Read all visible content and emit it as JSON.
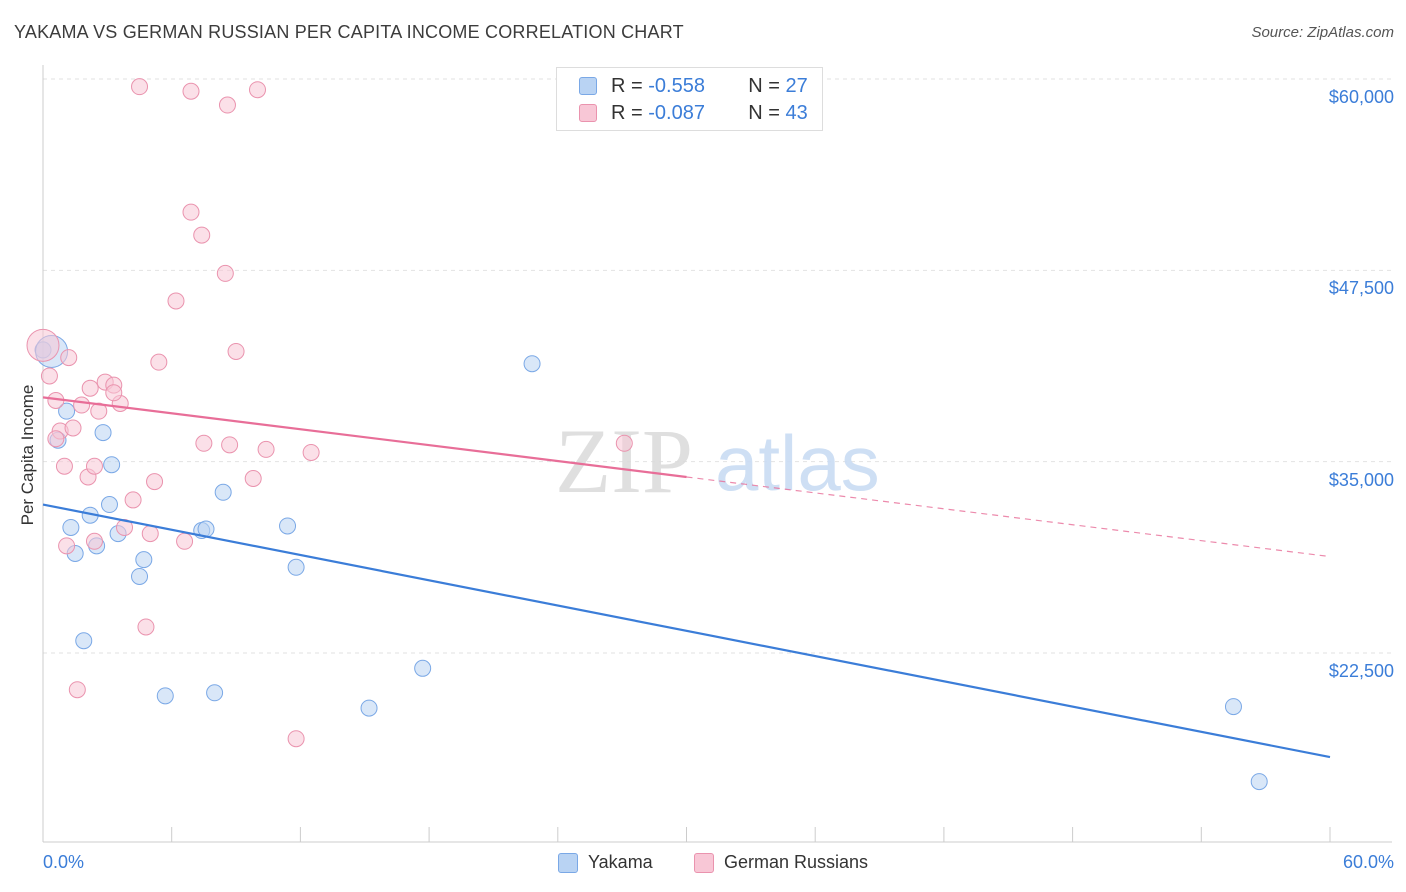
{
  "title": "YAKAMA VS GERMAN RUSSIAN PER CAPITA INCOME CORRELATION CHART",
  "source": "Source: ZipAtlas.com",
  "watermark": {
    "zip": "ZIP",
    "atlas": "atlas"
  },
  "stats": {
    "r_label": "R =",
    "n_label": "N =",
    "rows": [
      {
        "series": "Yakama",
        "r": "-0.558",
        "n": "27",
        "color": "#3b7dd8"
      },
      {
        "series": "German Russians",
        "r": "-0.087",
        "n": "43",
        "color": "#e86e98"
      }
    ]
  },
  "legend": [
    "Yakama",
    "German Russians"
  ],
  "chart_data": {
    "type": "scatter",
    "title": "YAKAMA VS GERMAN RUSSIAN PER CAPITA INCOME CORRELATION CHART",
    "xlabel": "",
    "ylabel": "Per Capita Income",
    "xlim": [
      0,
      60
    ],
    "ylim": [
      12000,
      62000
    ],
    "x_tick_labels": [
      "0.0%",
      "60.0%"
    ],
    "y_ticks": [
      22500,
      35000,
      47500,
      60000
    ],
    "y_tick_labels": [
      "$22,500",
      "$35,000",
      "$47,500",
      "$60,000"
    ],
    "series": [
      {
        "name": "Yakama",
        "color": "#3b7dd8",
        "points": [
          [
            0.0,
            42300
          ],
          [
            1.1,
            38300
          ],
          [
            0.7,
            36400
          ],
          [
            2.8,
            36900
          ],
          [
            3.2,
            34800
          ],
          [
            3.1,
            32200
          ],
          [
            2.2,
            31500
          ],
          [
            1.3,
            30700
          ],
          [
            3.5,
            30300
          ],
          [
            8.4,
            33000
          ],
          [
            7.4,
            30500
          ],
          [
            7.6,
            30600
          ],
          [
            11.4,
            30800
          ],
          [
            2.5,
            29500
          ],
          [
            1.5,
            29000
          ],
          [
            4.7,
            28600
          ],
          [
            11.8,
            28100
          ],
          [
            4.5,
            27500
          ],
          [
            1.9,
            23300
          ],
          [
            5.7,
            19700
          ],
          [
            8.0,
            19900
          ],
          [
            15.2,
            18900
          ],
          [
            17.7,
            21500
          ],
          [
            22.8,
            41400
          ],
          [
            55.5,
            19000
          ],
          [
            56.7,
            14100
          ],
          [
            0.4,
            42200
          ]
        ],
        "trend": {
          "x": [
            0,
            60
          ],
          "y": [
            32200,
            15700
          ],
          "dashed_from": null
        }
      },
      {
        "name": "German Russians",
        "color": "#e86e98",
        "points": [
          [
            0.0,
            42600
          ],
          [
            0.3,
            40600
          ],
          [
            1.2,
            41800
          ],
          [
            2.2,
            39800
          ],
          [
            2.9,
            40200
          ],
          [
            3.3,
            40000
          ],
          [
            0.6,
            39000
          ],
          [
            1.8,
            38700
          ],
          [
            2.6,
            38300
          ],
          [
            3.6,
            38800
          ],
          [
            0.8,
            37000
          ],
          [
            1.4,
            37200
          ],
          [
            0.6,
            36500
          ],
          [
            5.4,
            41500
          ],
          [
            6.2,
            45500
          ],
          [
            7.4,
            49800
          ],
          [
            8.5,
            47300
          ],
          [
            9.0,
            42200
          ],
          [
            6.9,
            51300
          ],
          [
            6.9,
            59200
          ],
          [
            8.6,
            58300
          ],
          [
            10.0,
            59300
          ],
          [
            4.5,
            59500
          ],
          [
            1.0,
            34700
          ],
          [
            2.1,
            34000
          ],
          [
            2.4,
            34700
          ],
          [
            4.2,
            32500
          ],
          [
            5.2,
            33700
          ],
          [
            7.5,
            36200
          ],
          [
            8.7,
            36100
          ],
          [
            10.4,
            35800
          ],
          [
            9.8,
            33900
          ],
          [
            12.5,
            35600
          ],
          [
            3.8,
            30700
          ],
          [
            5.0,
            30300
          ],
          [
            6.6,
            29800
          ],
          [
            2.4,
            29800
          ],
          [
            1.1,
            29500
          ],
          [
            4.8,
            24200
          ],
          [
            1.6,
            20100
          ],
          [
            11.8,
            16900
          ],
          [
            27.1,
            36200
          ],
          [
            3.3,
            39500
          ]
        ],
        "trend": {
          "x": [
            0,
            60
          ],
          "y": [
            39200,
            28800
          ],
          "dashed_from": 30
        }
      }
    ]
  }
}
